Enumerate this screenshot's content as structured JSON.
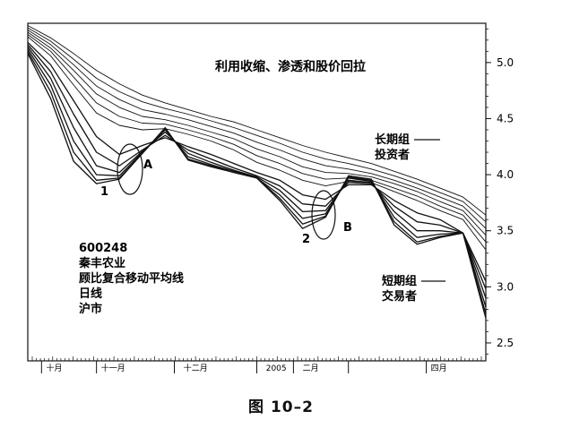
{
  "chart_data": {
    "type": "line",
    "title": "利用收缩、渗透和股价回拉",
    "figure_caption": "图 10–2",
    "info_lines": [
      "600248",
      "秦丰农业",
      "顾比复合移动平均线",
      "日线",
      "沪市"
    ],
    "group_labels": {
      "long": [
        "长期组",
        "投资者"
      ],
      "short": [
        "短期组",
        "交易者"
      ]
    },
    "annotations": [
      "1",
      "A",
      "2",
      "B"
    ],
    "x_tick_labels": [
      "十月",
      "十一月",
      "十二月",
      "2005",
      "二月",
      "四月"
    ],
    "y_ticks": [
      2.5,
      3.0,
      3.5,
      4.0,
      4.5,
      5.0
    ],
    "y_tick_labels": [
      "2.5",
      "3.0",
      "3.5",
      "4.0",
      "4.5",
      "5.0"
    ],
    "ylim": [
      2.34,
      5.35
    ],
    "xlim": [
      0,
      100
    ],
    "series": [
      {
        "group": "long",
        "x": [
          0,
          5,
          10,
          15,
          20,
          25,
          30,
          35,
          40,
          45,
          50,
          55,
          60,
          65,
          70,
          75,
          80,
          85,
          90,
          95,
          100
        ],
        "values": [
          5.33,
          5.22,
          5.08,
          4.93,
          4.81,
          4.71,
          4.64,
          4.58,
          4.52,
          4.47,
          4.4,
          4.33,
          4.26,
          4.2,
          4.15,
          4.1,
          4.03,
          3.96,
          3.88,
          3.8,
          3.64
        ]
      },
      {
        "group": "long",
        "x": [
          0,
          5,
          10,
          15,
          20,
          25,
          30,
          35,
          40,
          45,
          50,
          55,
          60,
          65,
          70,
          75,
          80,
          85,
          90,
          95,
          100
        ],
        "values": [
          5.31,
          5.19,
          5.03,
          4.86,
          4.74,
          4.65,
          4.59,
          4.54,
          4.48,
          4.42,
          4.35,
          4.28,
          4.2,
          4.14,
          4.1,
          4.05,
          3.99,
          3.92,
          3.84,
          3.76,
          3.58
        ]
      },
      {
        "group": "long",
        "x": [
          0,
          5,
          10,
          15,
          20,
          25,
          30,
          35,
          40,
          45,
          50,
          55,
          60,
          65,
          70,
          75,
          80,
          85,
          90,
          95,
          100
        ],
        "values": [
          5.29,
          5.16,
          4.98,
          4.79,
          4.67,
          4.58,
          4.54,
          4.49,
          4.43,
          4.37,
          4.29,
          4.22,
          4.14,
          4.08,
          4.05,
          4.01,
          3.95,
          3.88,
          3.8,
          3.72,
          3.52
        ]
      },
      {
        "group": "long",
        "x": [
          0,
          5,
          10,
          15,
          20,
          25,
          30,
          35,
          40,
          45,
          50,
          55,
          60,
          65,
          70,
          75,
          80,
          85,
          90,
          95,
          100
        ],
        "values": [
          5.27,
          5.13,
          4.93,
          4.72,
          4.6,
          4.52,
          4.49,
          4.44,
          4.38,
          4.32,
          4.23,
          4.16,
          4.07,
          4.02,
          4.01,
          3.98,
          3.92,
          3.85,
          3.76,
          3.68,
          3.46
        ]
      },
      {
        "group": "long",
        "x": [
          0,
          5,
          10,
          15,
          20,
          25,
          30,
          35,
          40,
          45,
          50,
          55,
          60,
          65,
          70,
          75,
          80,
          85,
          90,
          95,
          100
        ],
        "values": [
          5.25,
          5.1,
          4.87,
          4.64,
          4.52,
          4.46,
          4.45,
          4.4,
          4.34,
          4.27,
          4.17,
          4.1,
          4.01,
          3.96,
          3.97,
          3.95,
          3.88,
          3.81,
          3.72,
          3.64,
          3.4
        ]
      },
      {
        "group": "long",
        "x": [
          0,
          5,
          10,
          15,
          20,
          25,
          30,
          35,
          40,
          45,
          50,
          55,
          60,
          65,
          70,
          75,
          80,
          85,
          90,
          95,
          100
        ],
        "values": [
          5.23,
          5.06,
          4.8,
          4.55,
          4.44,
          4.4,
          4.41,
          4.36,
          4.3,
          4.22,
          4.11,
          4.04,
          3.95,
          3.9,
          3.94,
          3.93,
          3.85,
          3.77,
          3.68,
          3.6,
          3.33
        ]
      },
      {
        "group": "short",
        "x": [
          0,
          5,
          10,
          15,
          20,
          25,
          30,
          35,
          40,
          45,
          50,
          55,
          60,
          65,
          70,
          75,
          80,
          85,
          90,
          95,
          100
        ],
        "values": [
          5.18,
          4.98,
          4.66,
          4.34,
          4.18,
          4.26,
          4.33,
          4.25,
          4.18,
          4.1,
          4.02,
          3.95,
          3.82,
          3.78,
          3.91,
          3.91,
          3.77,
          3.66,
          3.6,
          3.48,
          3.05
        ]
      },
      {
        "group": "short",
        "x": [
          0,
          5,
          10,
          15,
          20,
          25,
          30,
          35,
          40,
          45,
          50,
          55,
          60,
          65,
          70,
          75,
          80,
          85,
          90,
          95,
          100
        ],
        "values": [
          5.16,
          4.92,
          4.54,
          4.2,
          4.08,
          4.22,
          4.35,
          4.22,
          4.14,
          4.06,
          3.99,
          3.9,
          3.74,
          3.72,
          3.93,
          3.92,
          3.72,
          3.58,
          3.55,
          3.48,
          2.98
        ]
      },
      {
        "group": "short",
        "x": [
          0,
          5,
          10,
          15,
          20,
          25,
          30,
          35,
          40,
          45,
          50,
          55,
          60,
          65,
          70,
          75,
          80,
          85,
          90,
          95,
          100
        ],
        "values": [
          5.14,
          4.86,
          4.42,
          4.08,
          4.02,
          4.21,
          4.38,
          4.19,
          4.11,
          4.04,
          3.98,
          3.86,
          3.67,
          3.68,
          3.95,
          3.93,
          3.67,
          3.5,
          3.5,
          3.48,
          2.9
        ]
      },
      {
        "group": "short",
        "x": [
          0,
          5,
          10,
          15,
          20,
          25,
          30,
          35,
          40,
          45,
          50,
          55,
          60,
          65,
          70,
          75,
          80,
          85,
          90,
          95,
          100
        ],
        "values": [
          5.12,
          4.8,
          4.3,
          4.0,
          3.99,
          4.2,
          4.4,
          4.16,
          4.09,
          4.03,
          3.97,
          3.82,
          3.61,
          3.65,
          3.97,
          3.94,
          3.62,
          3.44,
          3.47,
          3.48,
          2.82
        ]
      },
      {
        "group": "short",
        "x": [
          0,
          5,
          10,
          15,
          20,
          25,
          30,
          35,
          40,
          45,
          50,
          55,
          60,
          65,
          70,
          75,
          80,
          85,
          90,
          95,
          100
        ],
        "values": [
          5.1,
          4.74,
          4.2,
          3.95,
          3.97,
          4.19,
          4.41,
          4.14,
          4.08,
          4.02,
          3.97,
          3.79,
          3.56,
          3.63,
          3.98,
          3.95,
          3.58,
          3.4,
          3.45,
          3.48,
          2.76
        ]
      },
      {
        "group": "short",
        "x": [
          0,
          5,
          10,
          15,
          20,
          25,
          30,
          35,
          40,
          45,
          50,
          55,
          60,
          65,
          70,
          75,
          80,
          85,
          90,
          95,
          100
        ],
        "values": [
          5.08,
          4.68,
          4.12,
          3.92,
          3.96,
          4.19,
          4.42,
          4.13,
          4.07,
          4.02,
          3.97,
          3.77,
          3.52,
          3.62,
          3.99,
          3.96,
          3.55,
          3.38,
          3.44,
          3.48,
          2.72
        ]
      }
    ],
    "grid": false,
    "colors": {
      "line": "#111111",
      "background": "#ffffff"
    }
  }
}
